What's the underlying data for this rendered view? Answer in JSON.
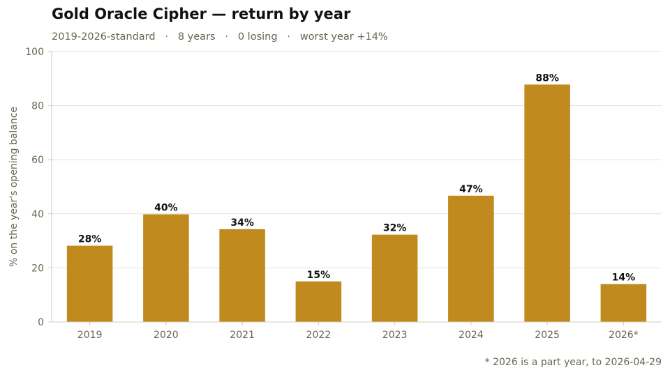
{
  "title": "Gold Oracle Cipher — return by year",
  "subtitle": "2019-2026-standard   ·   8 years   ·   0 losing   ·   worst year +14%",
  "footnote": "* 2026 is a part year, to 2026-04-29",
  "colors": {
    "bar": "#c08a1e",
    "grid": "#e3e1d6",
    "axis": "#cfcbbb"
  },
  "chart_data": {
    "type": "bar",
    "title": "Gold Oracle Cipher — return by year",
    "subtitle": "2019-2026-standard   ·   8 years   ·   0 losing   ·   worst year +14%",
    "xlabel": "",
    "ylabel": "% on the year's opening balance",
    "ylim": [
      0,
      100
    ],
    "yticks": [
      0,
      20,
      40,
      60,
      80,
      100
    ],
    "grid": true,
    "categories": [
      "2019",
      "2020",
      "2021",
      "2022",
      "2023",
      "2024",
      "2025",
      "2026*"
    ],
    "values": [
      28.2,
      39.8,
      34.3,
      15.0,
      32.3,
      46.7,
      87.8,
      14.0
    ],
    "data_labels": [
      "28%",
      "40%",
      "34%",
      "15%",
      "32%",
      "47%",
      "88%",
      "14%"
    ]
  }
}
